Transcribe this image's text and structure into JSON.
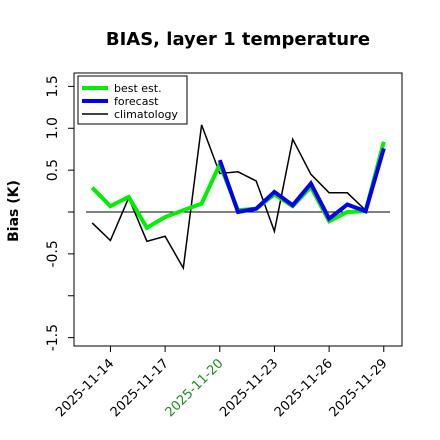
{
  "chart_data": {
    "type": "line",
    "title": "BIAS, layer 1 temperature",
    "xlabel": "",
    "ylabel": "Bias (K)",
    "x": [
      "2025-11-13",
      "2025-11-14",
      "2025-11-15",
      "2025-11-16",
      "2025-11-17",
      "2025-11-18",
      "2025-11-19",
      "2025-11-20",
      "2025-11-21",
      "2025-11-22",
      "2025-11-23",
      "2025-11-24",
      "2025-11-25",
      "2025-11-26",
      "2025-11-27",
      "2025-11-28",
      "2025-11-29"
    ],
    "xticks": [
      "2025-11-14",
      "2025-11-17",
      "2025-11-20",
      "2025-11-23",
      "2025-11-26",
      "2025-11-29"
    ],
    "highlight_tick": "2025-11-20",
    "highlight_color": "#228b22",
    "xlim": [
      "2025-11-12",
      "2025-11-30"
    ],
    "yticks": [
      -1.5,
      -0.5,
      0.5,
      1.0,
      1.5
    ],
    "ytick_labels": [
      "-1.5",
      "-0.5",
      "0.5",
      "1.0",
      "1.5"
    ],
    "ylim": [
      -1.6,
      1.66
    ],
    "zero_line": true,
    "grid": false,
    "legend_position": "top-left",
    "series": [
      {
        "name": "best est.",
        "color": "#00ee00",
        "values": [
          0.29,
          0.07,
          0.18,
          -0.19,
          -0.06,
          0.02,
          0.1,
          0.57,
          0.02,
          0.04,
          0.21,
          0.07,
          0.3,
          -0.11,
          0.0,
          0.01,
          0.84
        ]
      },
      {
        "name": "forecast",
        "color": "#0000ee",
        "values": [
          null,
          null,
          null,
          null,
          null,
          null,
          null,
          0.62,
          0.0,
          0.04,
          0.24,
          0.08,
          0.34,
          -0.08,
          0.09,
          0.01,
          0.76
        ]
      },
      {
        "name": "climatology",
        "color": "#000000",
        "values": [
          -0.13,
          -0.34,
          0.17,
          -0.35,
          -0.29,
          -0.67,
          1.04,
          0.46,
          0.48,
          0.37,
          -0.23,
          0.87,
          0.45,
          0.23,
          0.23,
          0.02,
          0.74
        ]
      }
    ]
  }
}
